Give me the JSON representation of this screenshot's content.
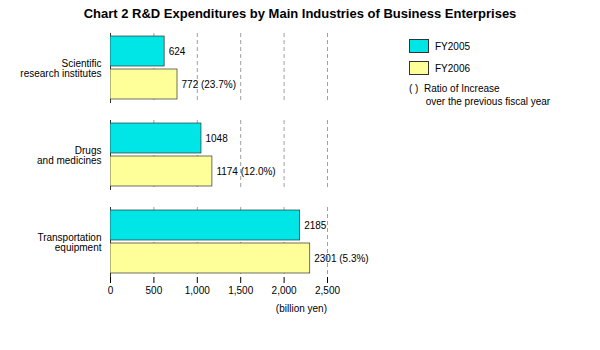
{
  "chart_data": {
    "type": "bar",
    "orientation": "horizontal",
    "title": "Chart 2 R&D Expenditures by Main Industries of Business Enterprises",
    "categories": [
      "Transportation\nequipment",
      "Drugs\nand medicines",
      "Scientific\nresearch institutes"
    ],
    "series": [
      {
        "name": "FY2005",
        "color": "#00E5E5",
        "values": [
          2185,
          1048,
          624
        ]
      },
      {
        "name": "FY2006",
        "color": "#FFFF99",
        "values": [
          2301,
          1174,
          772
        ],
        "value_labels": [
          "2301 (5.3%)",
          "1174 (12.0%)",
          "772 (23.7%)"
        ]
      }
    ],
    "xlim": [
      0,
      2500
    ],
    "xticks": [
      0,
      500,
      {
        "value": 1000,
        "label": "1,000"
      },
      {
        "value": 1500,
        "label": "1,500"
      },
      {
        "value": 2000,
        "label": "2,000"
      },
      {
        "value": 2500,
        "label": "2,500"
      }
    ],
    "xlabel": "(billion yen)",
    "grid": true,
    "legend": "right",
    "data_labels": true,
    "annotations": [
      "( )  Ratio of Increase",
      "      over the previous fiscal year"
    ]
  }
}
